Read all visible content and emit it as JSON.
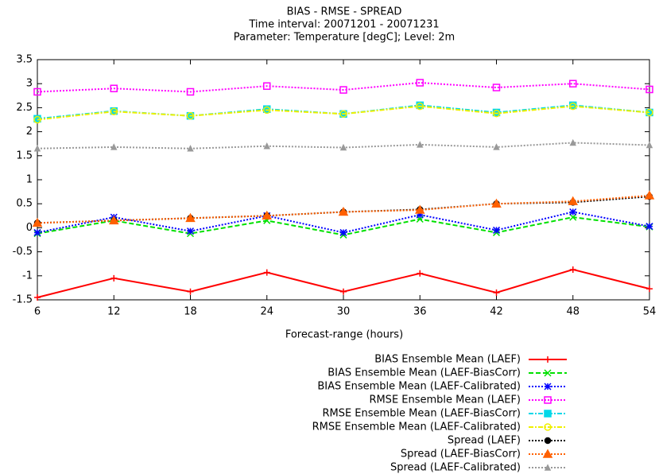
{
  "chart_data": {
    "type": "line",
    "title": "BIAS - RMSE - SPREAD",
    "subtitle": [
      "Time interval: 20071201 - 20071231",
      "Parameter: Temperature [degC]; Level: 2m"
    ],
    "x_label": "Forecast-range (hours)",
    "x": [
      6,
      12,
      18,
      24,
      30,
      36,
      42,
      48,
      54
    ],
    "xlim": [
      6,
      54
    ],
    "xticks": [
      6,
      12,
      18,
      24,
      30,
      36,
      42,
      48,
      54
    ],
    "ylim": [
      -1.5,
      3.5
    ],
    "yticks": [
      -1.5,
      -1,
      -0.5,
      0,
      0.5,
      1,
      1.5,
      2,
      2.5,
      3,
      3.5
    ],
    "grid": false,
    "legend": "bottom-right",
    "series": [
      {
        "name": "BIAS Ensemble Mean (LAEF)",
        "color": "#ff0000",
        "dash": "solid",
        "marker": "plus",
        "values": [
          -1.45,
          -1.05,
          -1.33,
          -0.93,
          -1.33,
          -0.95,
          -1.35,
          -0.87,
          -1.27
        ]
      },
      {
        "name": "BIAS Ensemble Mean (LAEF-BiasCorr)",
        "color": "#00e000",
        "dash": "dashed",
        "marker": "cross",
        "values": [
          -0.12,
          0.15,
          -0.12,
          0.15,
          -0.15,
          0.18,
          -0.1,
          0.22,
          0.02
        ]
      },
      {
        "name": "BIAS Ensemble Mean (LAEF-Calibrated)",
        "color": "#0000ff",
        "dash": "dotted",
        "marker": "star",
        "values": [
          -0.1,
          0.22,
          -0.07,
          0.25,
          -0.1,
          0.27,
          -0.05,
          0.33,
          0.03
        ]
      },
      {
        "name": "RMSE Ensemble Mean (LAEF)",
        "color": "#ff00ff",
        "dash": "dotted",
        "marker": "square-open",
        "values": [
          2.83,
          2.9,
          2.83,
          2.95,
          2.87,
          3.02,
          2.92,
          3.0,
          2.88
        ]
      },
      {
        "name": "RMSE Ensemble Mean (LAEF-BiasCorr)",
        "color": "#00d8e8",
        "dash": "dashdot",
        "marker": "square",
        "values": [
          2.27,
          2.43,
          2.33,
          2.47,
          2.37,
          2.55,
          2.4,
          2.55,
          2.4
        ]
      },
      {
        "name": "RMSE Ensemble Mean (LAEF-Calibrated)",
        "color": "#f0f000",
        "dash": "dashdot",
        "marker": "circle-open",
        "values": [
          2.25,
          2.42,
          2.33,
          2.45,
          2.37,
          2.53,
          2.38,
          2.53,
          2.4
        ]
      },
      {
        "name": "Spread (LAEF)",
        "color": "#000000",
        "dash": "dotted",
        "marker": "circle",
        "values": [
          0.1,
          0.15,
          0.2,
          0.25,
          0.33,
          0.38,
          0.5,
          0.53,
          0.65
        ]
      },
      {
        "name": "Spread (LAEF-BiasCorr)",
        "color": "#ff6000",
        "dash": "dotted",
        "marker": "triangle",
        "values": [
          0.1,
          0.15,
          0.2,
          0.25,
          0.33,
          0.37,
          0.5,
          0.55,
          0.67
        ]
      },
      {
        "name": "Spread (LAEF-Calibrated)",
        "color": "#999999",
        "dash": "dotted",
        "marker": "triangle-small",
        "values": [
          1.65,
          1.68,
          1.65,
          1.7,
          1.67,
          1.73,
          1.68,
          1.77,
          1.72
        ]
      }
    ]
  }
}
